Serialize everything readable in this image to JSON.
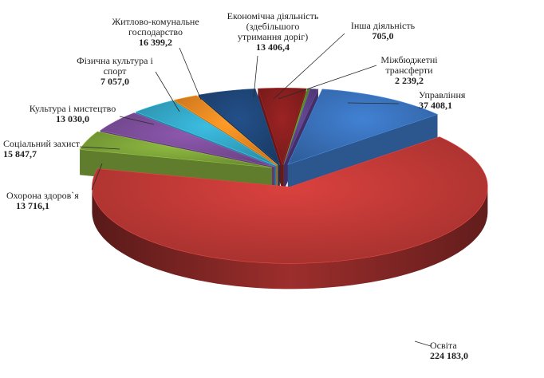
{
  "chart_data": {
    "type": "pie",
    "style": "3d-exploded",
    "unit": "",
    "slices": [
      {
        "name": "Управління",
        "value": 37408.1,
        "label": "37 408,1",
        "color": "#3a73bd"
      },
      {
        "name": "Освіта",
        "value": 224183.0,
        "label": "224 183,0",
        "color": "#c33a37"
      },
      {
        "name": "Охорона здоров`я",
        "value": 13716.1,
        "label": "13 716,1",
        "color": "#7fa63a"
      },
      {
        "name": "Соціальний захист",
        "value": 15847.7,
        "label": "15 847,7",
        "color": "#7e4f9c"
      },
      {
        "name": "Культура і мистецтво",
        "value": 13030.0,
        "label": "13 030,0",
        "color": "#35a9c9"
      },
      {
        "name": "Фізична культура і спорт",
        "value": 7057.0,
        "label": "7 057,0",
        "color": "#f28a23"
      },
      {
        "name": "Житлово-комунальне господарство",
        "value": 16399.2,
        "label": "16 399,2",
        "color": "#1f477a"
      },
      {
        "name": "Економічна діяльність (здебільшого утримання доріг)",
        "value": 13406.4,
        "label": "13 406,4",
        "color": "#8b1f1f"
      },
      {
        "name": "Інша діяльність",
        "value": 705.0,
        "label": "705,0",
        "color": "#5c8a2d"
      },
      {
        "name": "Міжбюджетні трансферти",
        "value": 2239.2,
        "label": "2 239,2",
        "color": "#5a3f86"
      }
    ],
    "labels": {
      "upravlinnia": {
        "name": "Управління",
        "value": "37 408,1"
      },
      "osvita": {
        "name": "Освіта",
        "value": "224 183,0"
      },
      "okhorona": {
        "name": "Охорона здоров`я",
        "value": "13 716,1"
      },
      "sotsialnyi": {
        "name": "Соціальний захист",
        "value": "15 847,7"
      },
      "kultura": {
        "name": "Культура і мистецтво",
        "value": "13 030,0"
      },
      "fizychna": {
        "line1": "Фізична культура і",
        "line2": "спорт",
        "value": "7 057,0"
      },
      "zhytlovo": {
        "line1": "Житлово-комунальне",
        "line2": "господарство",
        "value": "16 399,2"
      },
      "ekonomichna": {
        "line1": "Економічна діяльність",
        "line2": "(здебільшого",
        "line3": "утримання доріг)",
        "value": "13 406,4"
      },
      "insha": {
        "name": "Інша діяльність",
        "value": "705,0"
      },
      "mizhbiudzhetni": {
        "line1": "Міжбюджетні",
        "line2": "трансферти",
        "value": "2 239,2"
      }
    }
  }
}
